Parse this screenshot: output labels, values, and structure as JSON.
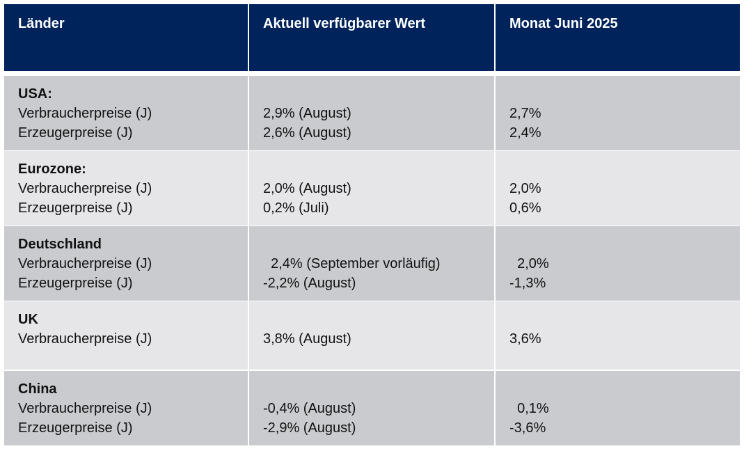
{
  "header": {
    "col1": "Länder",
    "col2": "Aktuell verfügbarer Wert",
    "col3": "Monat Juni 2025"
  },
  "colors": {
    "header": "#00235b",
    "row_dark": "#cacbcf",
    "row_light": "#e6e6e8"
  },
  "rows": [
    {
      "country": "USA:",
      "labels": [
        "Verbraucherpreise (J)",
        "Erzeugerpreise (J)"
      ],
      "current": [
        "2,9% (August)",
        "2,6% (August)"
      ],
      "june": [
        "2,7%",
        "2,4%"
      ]
    },
    {
      "country": "Eurozone:",
      "labels": [
        "Verbraucherpreise (J)",
        "Erzeugerpreise (J)"
      ],
      "current": [
        "2,0% (August)",
        "0,2% (Juli)"
      ],
      "june": [
        "2,0%",
        "0,6%"
      ]
    },
    {
      "country": "Deutschland",
      "labels": [
        "Verbraucherpreise (J)",
        "Erzeugerpreise (J)"
      ],
      "current": [
        "  2,4% (September vorläufig)",
        "-2,2% (August)"
      ],
      "june": [
        "  2,0%",
        "-1,3%"
      ]
    },
    {
      "country": "UK",
      "labels": [
        "Verbraucherpreise (J)"
      ],
      "current": [
        "3,8% (August)"
      ],
      "june": [
        "3,6%"
      ]
    },
    {
      "country": "China",
      "labels": [
        "Verbraucherpreise (J)",
        "Erzeugerpreise (J)"
      ],
      "current": [
        "-0,4% (August)",
        "-2,9% (August)"
      ],
      "june": [
        "  0,1%",
        "-3,6%"
      ]
    }
  ]
}
